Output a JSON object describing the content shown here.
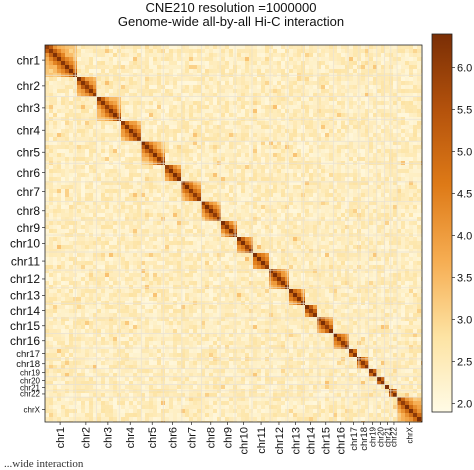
{
  "chart_data": {
    "type": "heatmap",
    "title": "CNE210 resolution =1000000",
    "subtitle": "Genome-wide all-by-all Hi-C interaction",
    "chromosomes": [
      {
        "name": "chr1",
        "size": 125
      },
      {
        "name": "chr2",
        "size": 88
      },
      {
        "name": "chr3",
        "size": 94
      },
      {
        "name": "chr4",
        "size": 91
      },
      {
        "name": "chr5",
        "size": 91
      },
      {
        "name": "chr6",
        "size": 77
      },
      {
        "name": "chr7",
        "size": 81
      },
      {
        "name": "chr8",
        "size": 77
      },
      {
        "name": "chr9",
        "size": 62
      },
      {
        "name": "chr10",
        "size": 70
      },
      {
        "name": "chr11",
        "size": 75
      },
      {
        "name": "chr12",
        "size": 73
      },
      {
        "name": "chr13",
        "size": 64
      },
      {
        "name": "chr14",
        "size": 61
      },
      {
        "name": "chr15",
        "size": 64
      },
      {
        "name": "chr16",
        "size": 60
      },
      {
        "name": "chr17",
        "size": 45
      },
      {
        "name": "chr18",
        "size": 40
      },
      {
        "name": "chr19",
        "size": 34
      },
      {
        "name": "chr20",
        "size": 32
      },
      {
        "name": "chr21",
        "size": 26
      },
      {
        "name": "chr22",
        "size": 26
      },
      {
        "name": "chrX",
        "size": 103
      }
    ],
    "colorbar": {
      "min": 1.9,
      "max": 6.4,
      "ticks": [
        2.0,
        2.5,
        3.0,
        3.5,
        4.0,
        4.5,
        5.0,
        5.5,
        6.0
      ],
      "tick_labels": [
        "2.0",
        "2.5",
        "3.0",
        "3.5",
        "4.0",
        "4.5",
        "5.0",
        "5.5",
        "6.0"
      ],
      "colors": [
        "#fffbe6",
        "#fde3a3",
        "#f6ad52",
        "#de7a17",
        "#b4520c",
        "#7a2e05"
      ]
    },
    "grid": false,
    "legend": "colorbar-right"
  },
  "footer": {
    "text": "...wide interaction"
  }
}
